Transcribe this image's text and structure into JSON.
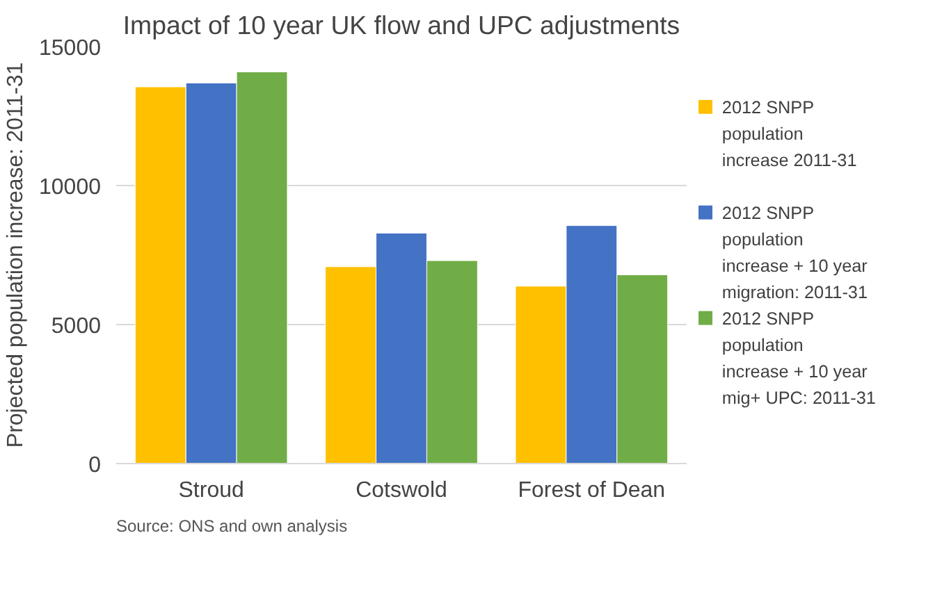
{
  "chart_data": {
    "type": "bar",
    "title": "Impact of 10 year UK flow and UPC adjustments",
    "ylabel": "Projected population increase: 2011-31",
    "categories": [
      "Stroud",
      "Cotswold",
      "Forest of Dean"
    ],
    "series": [
      {
        "name": "2012 SNPP population increase 2011-31",
        "color": "#ffc000",
        "values": [
          13550,
          7080,
          6380
        ]
      },
      {
        "name": "2012 SNPP population increase + 10 year migration: 2011-31",
        "color": "#4472c4",
        "values": [
          13690,
          8290,
          8560
        ]
      },
      {
        "name": "2012 SNPP population increase + 10 year mig+ UPC: 2011-31",
        "color": "#70ad47",
        "values": [
          14090,
          7300,
          6790
        ]
      }
    ],
    "ylim": [
      0,
      15000
    ],
    "yticks": [
      0,
      5000,
      10000,
      15000
    ],
    "grid": "y",
    "legend": "right",
    "annotations": [
      "Source: ONS and own analysis"
    ]
  }
}
